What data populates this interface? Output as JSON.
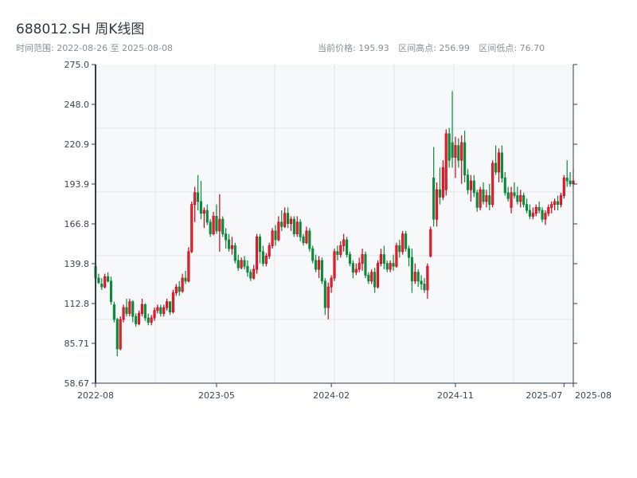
{
  "header": {
    "title": "688012.SH 周K线图",
    "range_label": "时间范围: 2022-08-26 至 2025-08-08",
    "current_price": "当前价格: 195.93",
    "range_high": "区间高点: 256.99",
    "range_low": "区间低点: 76.70"
  },
  "chart_data": {
    "type": "candlestick",
    "title": "688012.SH 周K线图",
    "period": "weekly",
    "start_date": "2022-08-26",
    "end_date": "2025-08-08",
    "ylim": [
      58.67,
      275.0
    ],
    "y_ticks": [
      "58.67",
      "85.71",
      "112.8",
      "139.8",
      "166.8",
      "193.9",
      "220.9",
      "248.0",
      "275.0"
    ],
    "x_ticks": [
      {
        "label": "2022-08",
        "date": "2022-08-26"
      },
      {
        "label": "2023-05",
        "date": "2023-05-26"
      },
      {
        "label": "2024-02",
        "date": "2024-02-09"
      },
      {
        "label": "2024-11",
        "date": "2024-11-15"
      },
      {
        "label": "2025-07",
        "date": "2025-07-18"
      },
      {
        "label": "2025-08",
        "date": "2025-08-08"
      }
    ],
    "grid": true,
    "colors": {
      "up": "#d0021b",
      "up_fill": "#e8262b",
      "down": "#0a8a3a",
      "plot_bg": "#f6f8fa",
      "axis": "#2f3e50",
      "grid": "#e1e4e8"
    },
    "ohlc_fields": [
      "open",
      "high",
      "low",
      "close"
    ],
    "candles": [
      [
        138,
        140,
        128,
        130
      ],
      [
        130,
        133,
        126,
        127
      ],
      [
        126,
        130,
        122,
        124
      ],
      [
        124,
        133,
        123,
        131
      ],
      [
        131,
        134,
        127,
        128
      ],
      [
        128,
        131,
        112,
        114
      ],
      [
        112,
        114,
        100,
        102
      ],
      [
        102,
        103,
        77,
        82
      ],
      [
        82,
        104,
        81,
        102
      ],
      [
        102,
        112,
        100,
        110
      ],
      [
        110,
        116,
        104,
        106
      ],
      [
        106,
        116,
        104,
        114
      ],
      [
        114,
        115,
        100,
        104
      ],
      [
        104,
        106,
        97,
        99
      ],
      [
        99,
        108,
        98,
        106
      ],
      [
        106,
        116,
        104,
        112
      ],
      [
        112,
        113,
        101,
        103
      ],
      [
        103,
        106,
        98,
        100
      ],
      [
        100,
        105,
        98,
        103
      ],
      [
        103,
        110,
        101,
        108
      ],
      [
        108,
        112,
        106,
        110
      ],
      [
        110,
        112,
        104,
        106
      ],
      [
        106,
        112,
        104,
        110
      ],
      [
        110,
        116,
        108,
        114
      ],
      [
        114,
        114,
        105,
        107
      ],
      [
        107,
        122,
        106,
        120
      ],
      [
        120,
        126,
        118,
        124
      ],
      [
        124,
        128,
        118,
        121
      ],
      [
        121,
        133,
        120,
        130
      ],
      [
        130,
        135,
        126,
        128
      ],
      [
        128,
        151,
        127,
        148
      ],
      [
        148,
        182,
        147,
        180
      ],
      [
        180,
        192,
        168,
        188
      ],
      [
        188,
        200,
        176,
        182
      ],
      [
        182,
        196,
        170,
        174
      ],
      [
        174,
        178,
        164,
        176
      ],
      [
        176,
        180,
        166,
        168
      ],
      [
        168,
        170,
        158,
        160
      ],
      [
        160,
        175,
        159,
        172
      ],
      [
        172,
        180,
        160,
        162
      ],
      [
        162,
        187,
        148,
        170
      ],
      [
        170,
        172,
        158,
        160
      ],
      [
        160,
        164,
        150,
        156
      ],
      [
        156,
        160,
        148,
        150
      ],
      [
        150,
        158,
        146,
        152
      ],
      [
        152,
        154,
        140,
        142
      ],
      [
        142,
        146,
        135,
        137
      ],
      [
        137,
        144,
        136,
        142
      ],
      [
        142,
        145,
        136,
        138
      ],
      [
        138,
        142,
        131,
        134
      ],
      [
        134,
        136,
        128,
        130
      ],
      [
        130,
        139,
        129,
        136
      ],
      [
        136,
        160,
        133,
        158
      ],
      [
        158,
        160,
        140,
        148
      ],
      [
        148,
        152,
        138,
        140
      ],
      [
        140,
        147,
        138,
        145
      ],
      [
        145,
        154,
        143,
        152
      ],
      [
        152,
        164,
        150,
        162
      ],
      [
        162,
        166,
        152,
        156
      ],
      [
        156,
        172,
        155,
        168
      ],
      [
        168,
        176,
        162,
        165
      ],
      [
        165,
        178,
        164,
        174
      ],
      [
        174,
        178,
        164,
        167
      ],
      [
        167,
        172,
        162,
        170
      ],
      [
        170,
        172,
        158,
        160
      ],
      [
        160,
        172,
        158,
        168
      ],
      [
        168,
        170,
        155,
        158
      ],
      [
        158,
        160,
        152,
        154
      ],
      [
        154,
        165,
        153,
        162
      ],
      [
        162,
        164,
        148,
        150
      ],
      [
        150,
        152,
        140,
        142
      ],
      [
        142,
        146,
        134,
        136
      ],
      [
        136,
        145,
        130,
        142
      ],
      [
        142,
        144,
        126,
        128
      ],
      [
        128,
        130,
        105,
        110
      ],
      [
        110,
        127,
        102,
        124
      ],
      [
        124,
        132,
        120,
        130
      ],
      [
        130,
        150,
        128,
        148
      ],
      [
        148,
        152,
        142,
        146
      ],
      [
        146,
        155,
        144,
        152
      ],
      [
        152,
        160,
        148,
        156
      ],
      [
        156,
        158,
        144,
        146
      ],
      [
        146,
        148,
        138,
        140
      ],
      [
        140,
        142,
        130,
        134
      ],
      [
        134,
        140,
        132,
        136
      ],
      [
        136,
        144,
        134,
        140
      ],
      [
        140,
        150,
        135,
        146
      ],
      [
        146,
        148,
        130,
        132
      ],
      [
        132,
        134,
        126,
        128
      ],
      [
        128,
        136,
        126,
        134
      ],
      [
        134,
        137,
        120,
        124
      ],
      [
        124,
        142,
        123,
        140
      ],
      [
        140,
        150,
        138,
        146
      ],
      [
        146,
        152,
        136,
        140
      ],
      [
        140,
        142,
        134,
        136
      ],
      [
        136,
        142,
        134,
        140
      ],
      [
        140,
        146,
        135,
        138
      ],
      [
        138,
        154,
        137,
        152
      ],
      [
        152,
        156,
        144,
        148
      ],
      [
        148,
        162,
        146,
        160
      ],
      [
        160,
        162,
        148,
        150
      ],
      [
        150,
        152,
        138,
        144
      ],
      [
        144,
        150,
        120,
        128
      ],
      [
        128,
        140,
        126,
        134
      ],
      [
        134,
        136,
        124,
        128
      ],
      [
        128,
        132,
        122,
        126
      ],
      [
        126,
        130,
        120,
        122
      ],
      [
        122,
        140,
        116,
        138
      ],
      [
        145,
        165,
        144,
        163
      ],
      [
        198,
        219,
        165,
        170
      ],
      [
        170,
        195,
        165,
        190
      ],
      [
        190,
        205,
        180,
        185
      ],
      [
        185,
        210,
        183,
        205
      ],
      [
        190,
        231,
        186,
        228
      ],
      [
        228,
        232,
        205,
        210
      ],
      [
        222,
        256.99,
        205,
        212
      ],
      [
        212,
        226,
        198,
        220
      ],
      [
        220,
        225,
        205,
        210
      ],
      [
        210,
        227,
        194,
        222
      ],
      [
        222,
        230,
        195,
        200
      ],
      [
        200,
        204,
        187,
        190
      ],
      [
        190,
        200,
        182,
        196
      ],
      [
        196,
        200,
        185,
        188
      ],
      [
        188,
        190,
        175,
        178
      ],
      [
        178,
        192,
        176,
        190
      ],
      [
        190,
        195,
        180,
        182
      ],
      [
        182,
        190,
        178,
        186
      ],
      [
        186,
        194,
        176,
        180
      ],
      [
        180,
        210,
        178,
        208
      ],
      [
        208,
        220,
        200,
        202
      ],
      [
        202,
        218,
        195,
        215
      ],
      [
        215,
        220,
        195,
        198
      ],
      [
        198,
        202,
        186,
        188
      ],
      [
        188,
        192,
        182,
        184
      ],
      [
        178,
        192,
        174,
        188
      ],
      [
        188,
        195,
        184,
        186
      ],
      [
        186,
        192,
        180,
        182
      ],
      [
        182,
        190,
        178,
        186
      ],
      [
        186,
        188,
        178,
        180
      ],
      [
        180,
        184,
        174,
        176
      ],
      [
        176,
        180,
        170,
        172
      ],
      [
        172,
        178,
        170,
        174
      ],
      [
        174,
        180,
        172,
        178
      ],
      [
        178,
        182,
        174,
        176
      ],
      [
        176,
        178,
        168,
        170
      ],
      [
        170,
        176,
        166,
        174
      ],
      [
        174,
        180,
        172,
        178
      ],
      [
        178,
        182,
        174,
        180
      ],
      [
        180,
        184,
        176,
        182
      ],
      [
        182,
        186,
        176,
        180
      ],
      [
        180,
        188,
        178,
        186
      ],
      [
        186,
        200,
        184,
        198
      ],
      [
        198,
        210,
        192,
        196
      ],
      [
        196,
        202,
        192,
        194
      ],
      [
        194,
        204,
        192,
        195.93
      ]
    ]
  }
}
